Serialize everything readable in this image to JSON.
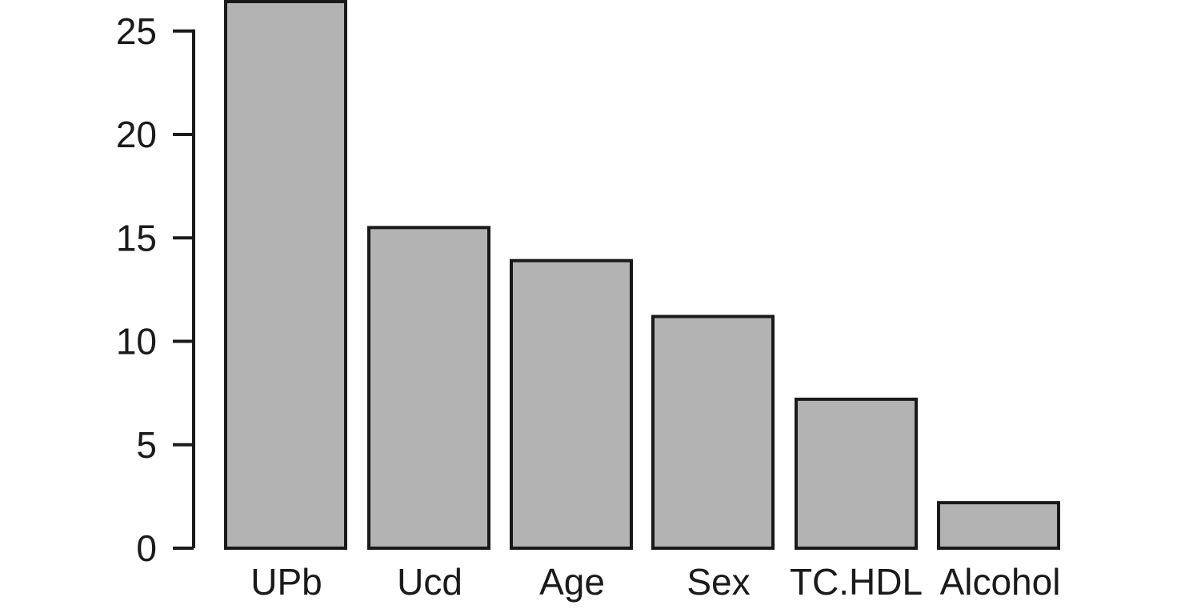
{
  "chart_data": {
    "type": "bar",
    "title": "",
    "xlabel": "",
    "ylabel": "",
    "categories": [
      "UPb",
      "Ucd",
      "Age",
      "Sex",
      "TC.HDL",
      "Alcohol"
    ],
    "values": [
      26.5,
      15.5,
      13.9,
      11.2,
      7.2,
      2.2
    ],
    "ylim": [
      0,
      26.5
    ],
    "yticks": [
      0,
      5,
      10,
      15,
      20,
      25
    ],
    "ytick_labels": [
      "0",
      "5",
      "10",
      "15",
      "20",
      "25"
    ],
    "grid": false,
    "legend": "none",
    "colors": {
      "bar_fill": "#b3b3b3",
      "bar_edge": "#1a1a1a",
      "axis": "#1a1a1a"
    }
  }
}
